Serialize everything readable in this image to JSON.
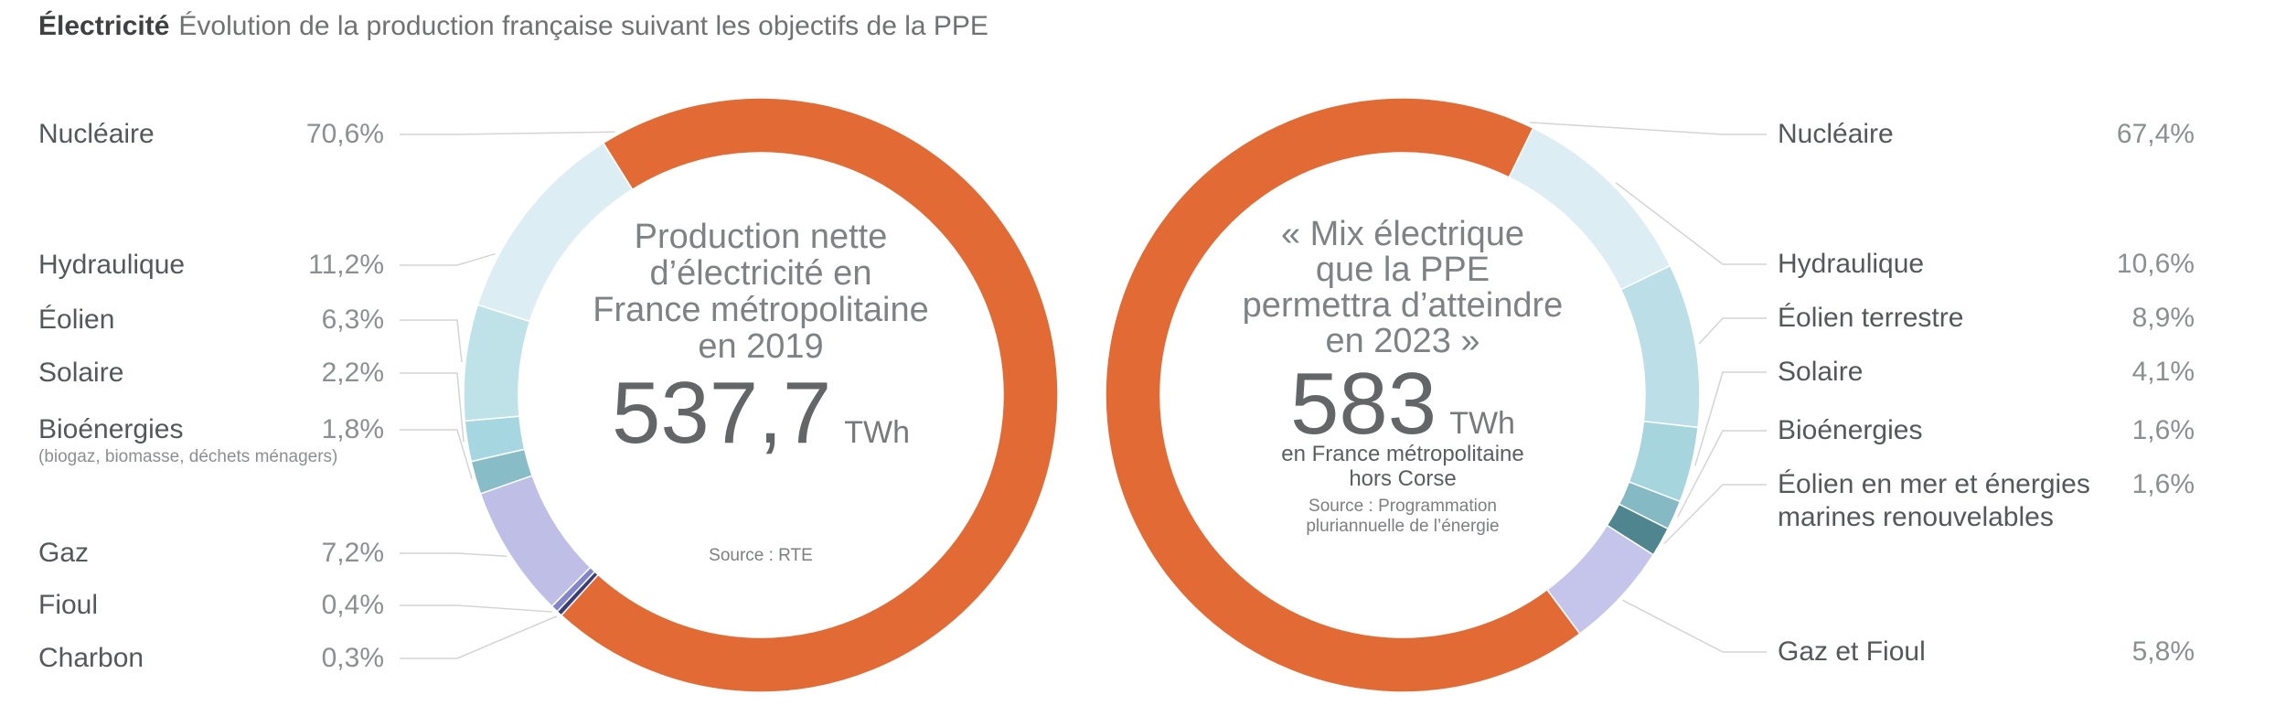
{
  "title": {
    "bold": "Électricité",
    "rest": "Évolution de la production française suivant les objectifs de la PPE"
  },
  "chart_data": [
    {
      "type": "donut",
      "position": "left",
      "center_title_lines": [
        "Production nette",
        "d’électricité en",
        "France métropolitaine",
        "en 2019"
      ],
      "total_value": "537,7",
      "total_unit": "TWh",
      "subtitle_lines": [],
      "source_lines": [
        "Source : RTE"
      ],
      "segments": [
        {
          "label": "Nucléaire",
          "pct": 70.6,
          "pct_label": "70,6%",
          "color": "#E26A35"
        },
        {
          "label": "Hydraulique",
          "pct": 11.2,
          "pct_label": "11,2%",
          "color": "#DCEEF3"
        },
        {
          "label": "Éolien",
          "pct": 6.3,
          "pct_label": "6,3%",
          "color": "#BFE1E8"
        },
        {
          "label": "Solaire",
          "pct": 2.2,
          "pct_label": "2,2%",
          "color": "#A6D6DF"
        },
        {
          "label": "Bioénergies",
          "pct": 1.8,
          "pct_label": "1,8%",
          "color": "#88BCC6",
          "caption": "(biogaz, biomasse, déchets ménagers)"
        },
        {
          "label": "Gaz",
          "pct": 7.2,
          "pct_label": "7,2%",
          "color": "#BFBEE6"
        },
        {
          "label": "Fioul",
          "pct": 0.4,
          "pct_label": "0,4%",
          "color": "#8285CA"
        },
        {
          "label": "Charbon",
          "pct": 0.3,
          "pct_label": "0,3%",
          "color": "#3A3E76"
        }
      ]
    },
    {
      "type": "donut",
      "position": "right",
      "center_title_lines": [
        "« Mix électrique",
        "que la PPE",
        "permettra d’atteindre",
        "en 2023 »"
      ],
      "total_value": "583",
      "total_unit": "TWh",
      "subtitle_lines": [
        "en France métropolitaine",
        "hors Corse"
      ],
      "source_lines": [
        "Source : Programmation",
        "pluriannuelle de l’énergie"
      ],
      "segments": [
        {
          "label": "Nucléaire",
          "pct": 67.4,
          "pct_label": "67,4%",
          "color": "#E26A35"
        },
        {
          "label": "Hydraulique",
          "pct": 10.6,
          "pct_label": "10,6%",
          "color": "#DCEEF3"
        },
        {
          "label": "Éolien terrestre",
          "pct": 8.9,
          "pct_label": "8,9%",
          "color": "#BCDFE7"
        },
        {
          "label": "Solaire",
          "pct": 4.1,
          "pct_label": "4,1%",
          "color": "#A6D5DE"
        },
        {
          "label": "Bioénergies",
          "pct": 1.6,
          "pct_label": "1,6%",
          "color": "#85B9C3"
        },
        {
          "label": "Éolien en mer et énergies marines renouvelables",
          "pct": 1.6,
          "pct_label": "1,6%",
          "color": "#4E858F"
        },
        {
          "label": "Gaz et Fioul",
          "pct": 5.8,
          "pct_label": "5,8%",
          "color": "#C5C4EB"
        }
      ]
    }
  ]
}
